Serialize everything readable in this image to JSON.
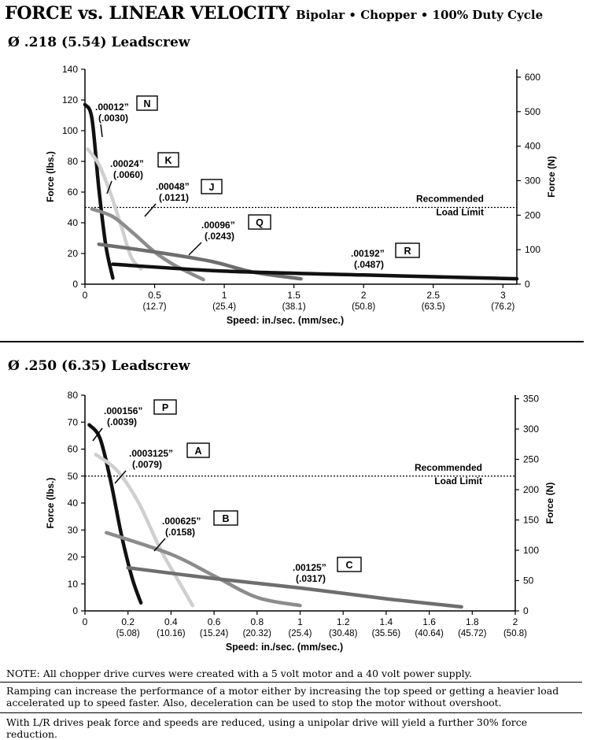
{
  "header": {
    "title": "FORCE vs. LINEAR VELOCITY",
    "subtitle": "Bipolar • Chopper • 100% Duty Cycle"
  },
  "sections": [
    {
      "title": "Ø .218 (5.54) Leadscrew"
    },
    {
      "title": "Ø .250 (6.35) Leadscrew"
    }
  ],
  "chart_data": [
    {
      "type": "line",
      "ylabel": "Force (lbs.)",
      "y2label": "Force (N)",
      "xlabel": "Speed:  in./sec. (mm/sec.)",
      "xlim": [
        0,
        3.1
      ],
      "ylim": [
        0,
        140
      ],
      "y2lim": [
        0,
        622.75
      ],
      "x_ticks": [
        {
          "v": 0,
          "l1": "0",
          "l2": ""
        },
        {
          "v": 0.5,
          "l1": "0.5",
          "l2": "(12.7)"
        },
        {
          "v": 1,
          "l1": "1",
          "l2": "(25.4)"
        },
        {
          "v": 1.5,
          "l1": "1.5",
          "l2": "(38.1)"
        },
        {
          "v": 2,
          "l1": "2",
          "l2": "(50.8)"
        },
        {
          "v": 2.5,
          "l1": "2.5",
          "l2": "(63.5)"
        },
        {
          "v": 3,
          "l1": "3",
          "l2": "(76.2)"
        }
      ],
      "y_ticks": [
        "0",
        "20",
        "40",
        "60",
        "80",
        "100",
        "120",
        "140"
      ],
      "y2_ticks": [
        "0",
        "100",
        "200",
        "300",
        "400",
        "500",
        "600"
      ],
      "limit_line": {
        "value": 50,
        "label1": "Recommended",
        "label2": "Load Limit"
      },
      "series": [
        {
          "name": "N",
          "step1": ".00012”",
          "step2": "(.0030)",
          "color": "#111111",
          "x": [
            0.0,
            0.05,
            0.1,
            0.15,
            0.2
          ],
          "y": [
            117,
            108,
            62,
            25,
            4
          ]
        },
        {
          "name": "K",
          "step1": ".00024”",
          "step2": "(.0060)",
          "color": "#cfcfcf",
          "x": [
            0.02,
            0.1,
            0.18,
            0.26,
            0.33,
            0.4
          ],
          "y": [
            88,
            78,
            60,
            38,
            18,
            10
          ]
        },
        {
          "name": "J",
          "step1": ".00048”",
          "step2": "(.0121)",
          "color": "#8c8c8c",
          "x": [
            0.05,
            0.2,
            0.35,
            0.5,
            0.65,
            0.85
          ],
          "y": [
            49,
            44,
            33,
            21,
            12,
            3
          ]
        },
        {
          "name": "Q",
          "step1": ".00096”",
          "step2": "(.0243)",
          "color": "#6e6e6e",
          "x": [
            0.1,
            0.5,
            0.9,
            1.2,
            1.55
          ],
          "y": [
            26,
            21,
            15,
            8,
            3.5
          ]
        },
        {
          "name": "R",
          "step1": ".00192”",
          "step2": "(.0487)",
          "color": "#111111",
          "x": [
            0.2,
            1.0,
            2.0,
            3.1
          ],
          "y": [
            13,
            8.5,
            6,
            3.5
          ]
        }
      ]
    },
    {
      "type": "line",
      "ylabel": "Force (lbs.)",
      "y2label": "Force (N)",
      "xlabel": "Speed:  in./sec. (mm/sec.)",
      "xlim": [
        0,
        2
      ],
      "ylim": [
        0,
        80
      ],
      "y2lim": [
        0,
        355.86
      ],
      "x_ticks": [
        {
          "v": 0,
          "l1": "0",
          "l2": ""
        },
        {
          "v": 0.2,
          "l1": "0.2",
          "l2": "(5.08)"
        },
        {
          "v": 0.4,
          "l1": "0.4",
          "l2": "(10.16)"
        },
        {
          "v": 0.6,
          "l1": "0.6",
          "l2": "(15.24)"
        },
        {
          "v": 0.8,
          "l1": "0.8",
          "l2": "(20.32)"
        },
        {
          "v": 1.0,
          "l1": "1",
          "l2": "(25.4)"
        },
        {
          "v": 1.2,
          "l1": "1.2",
          "l2": "(30.48)"
        },
        {
          "v": 1.4,
          "l1": "1.4",
          "l2": "(35.56)"
        },
        {
          "v": 1.6,
          "l1": "1.6",
          "l2": "(40.64)"
        },
        {
          "v": 1.8,
          "l1": "1.8",
          "l2": "(45.72)"
        },
        {
          "v": 2.0,
          "l1": "2",
          "l2": "(50.8)"
        }
      ],
      "y_ticks": [
        "0",
        "10",
        "20",
        "30",
        "40",
        "50",
        "60",
        "70",
        "80"
      ],
      "y2_ticks": [
        "0",
        "50",
        "100",
        "150",
        "200",
        "250",
        "300",
        "350"
      ],
      "limit_line": {
        "value": 50,
        "label1": "Recommended",
        "label2": "Load Limit"
      },
      "series": [
        {
          "name": "P",
          "step1": ".000156”",
          "step2": "(.0039)",
          "color": "#111111",
          "x": [
            0.02,
            0.07,
            0.12,
            0.17,
            0.22,
            0.26
          ],
          "y": [
            69,
            64,
            48,
            28,
            12,
            3
          ]
        },
        {
          "name": "A",
          "step1": ".0003125”",
          "step2": "(.0079)",
          "color": "#cfcfcf",
          "x": [
            0.05,
            0.15,
            0.25,
            0.35,
            0.45,
            0.5
          ],
          "y": [
            58,
            52,
            40,
            23,
            9,
            2
          ]
        },
        {
          "name": "B",
          "step1": ".000625”",
          "step2": "(.0158)",
          "color": "#8c8c8c",
          "x": [
            0.1,
            0.4,
            0.6,
            0.8,
            1.0
          ],
          "y": [
            29,
            21,
            13,
            5,
            2
          ]
        },
        {
          "name": "C",
          "step1": ".00125”",
          "step2": "(.0317)",
          "color": "#6e6e6e",
          "x": [
            0.2,
            0.6,
            1.0,
            1.4,
            1.75
          ],
          "y": [
            16,
            12,
            8.5,
            4.5,
            1.5
          ]
        }
      ]
    }
  ],
  "notes": [
    "NOTE: All chopper drive curves were created with a 5 volt motor and a 40 volt power supply.",
    "Ramping can increase the performance of a motor either by increasing the top speed or getting a heavier load accelerated up to speed faster.  Also, deceleration can be used to stop the motor without overshoot.",
    "With L/R drives peak force and speeds are reduced, using a unipolar drive will yield a further 30% force reduction."
  ]
}
